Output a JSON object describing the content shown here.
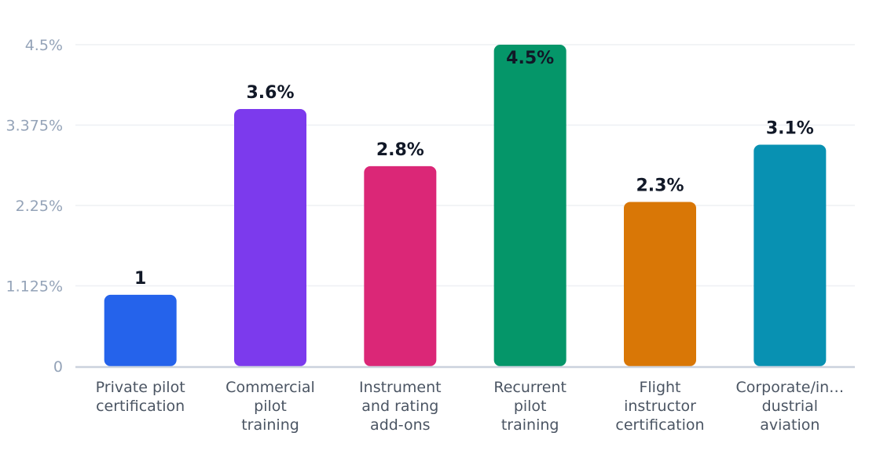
{
  "chart_data": {
    "type": "bar",
    "categories": [
      [
        "Private pilot",
        "certification"
      ],
      [
        "Commercial",
        "pilot",
        "training"
      ],
      [
        "Instrument",
        "and rating",
        "add-ons"
      ],
      [
        "Recurrent",
        "pilot",
        "training"
      ],
      [
        "Flight",
        "instructor",
        "certification"
      ],
      [
        "Corporate/in…",
        "dustrial",
        "aviation"
      ]
    ],
    "values": [
      1,
      3.6,
      2.8,
      4.5,
      2.3,
      3.1
    ],
    "data_labels": [
      "1",
      "3.6%",
      "2.8%",
      "4.5%",
      "2.3%",
      "3.1%"
    ],
    "colors": [
      "#2563eb",
      "#7c3aed",
      "#db2777",
      "#059669",
      "#d97706",
      "#0891b2"
    ],
    "y_ticks": [
      "0",
      "1.125%",
      "2.25%",
      "3.375%",
      "4.5%"
    ],
    "y_tick_values": [
      0,
      1.125,
      2.25,
      3.375,
      4.5
    ],
    "ylim": [
      0,
      4.5
    ],
    "grid": true
  }
}
